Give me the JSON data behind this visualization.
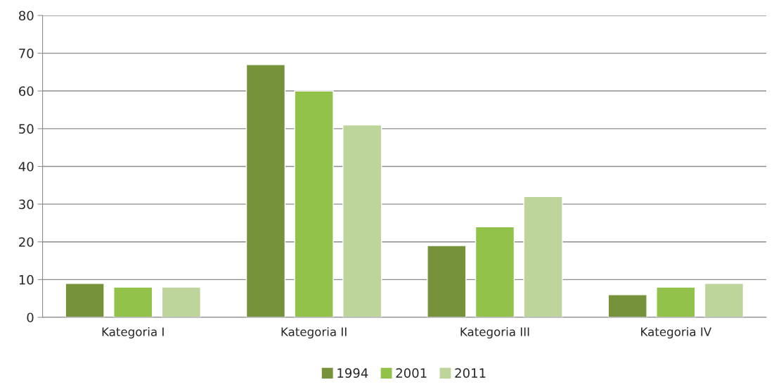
{
  "chart_data": {
    "type": "bar",
    "categories": [
      "Kategoria I",
      "Kategoria II",
      "Kategoria III",
      "Kategoria IV"
    ],
    "series": [
      {
        "name": "1994",
        "color": "#76933c",
        "values": [
          9,
          67,
          19,
          6
        ]
      },
      {
        "name": "2001",
        "color": "#92c24a",
        "values": [
          8,
          60,
          24,
          8
        ]
      },
      {
        "name": "2011",
        "color": "#bdd49a",
        "values": [
          8,
          51,
          32,
          9
        ]
      }
    ],
    "ylim": [
      0,
      80
    ],
    "yticks": [
      0,
      10,
      20,
      30,
      40,
      50,
      60,
      70,
      80
    ],
    "grid": "y",
    "legend": "bottom"
  }
}
